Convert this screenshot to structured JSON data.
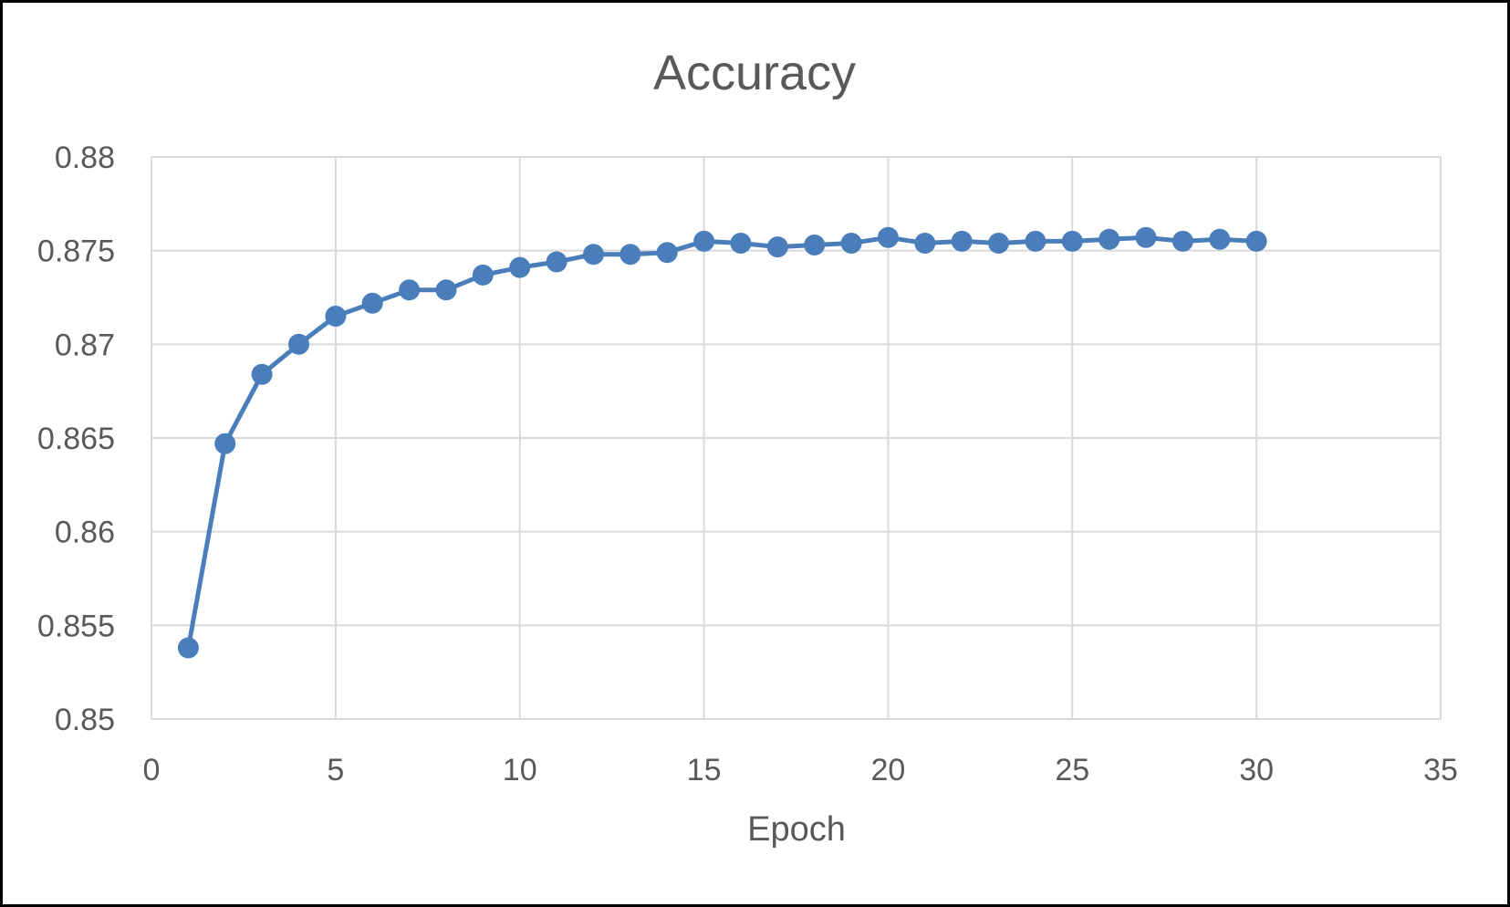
{
  "chart_data": {
    "type": "line",
    "title": "Accuracy",
    "xlabel": "Epoch",
    "ylabel": "",
    "xlim": [
      0,
      35
    ],
    "ylim": [
      0.85,
      0.88
    ],
    "x_ticks": [
      "0",
      "5",
      "10",
      "15",
      "20",
      "25",
      "30",
      "35"
    ],
    "y_ticks": [
      "0.85",
      "0.855",
      "0.86",
      "0.865",
      "0.87",
      "0.875",
      "0.88"
    ],
    "grid": true,
    "legend": "none",
    "series": [
      {
        "color": "#4a7ebb",
        "marker": "circle",
        "x": [
          1,
          2,
          3,
          4,
          5,
          6,
          7,
          8,
          9,
          10,
          11,
          12,
          13,
          14,
          15,
          16,
          17,
          18,
          19,
          20,
          21,
          22,
          23,
          24,
          25,
          26,
          27,
          28,
          29,
          30
        ],
        "y": [
          0.8538,
          0.8647,
          0.8684,
          0.87,
          0.8715,
          0.8722,
          0.8729,
          0.8729,
          0.8737,
          0.8741,
          0.8744,
          0.8748,
          0.8748,
          0.8749,
          0.8755,
          0.8754,
          0.8752,
          0.8753,
          0.8754,
          0.8757,
          0.8754,
          0.8755,
          0.8754,
          0.8755,
          0.8755,
          0.8756,
          0.8757,
          0.8755,
          0.8756,
          0.8755
        ]
      }
    ]
  }
}
